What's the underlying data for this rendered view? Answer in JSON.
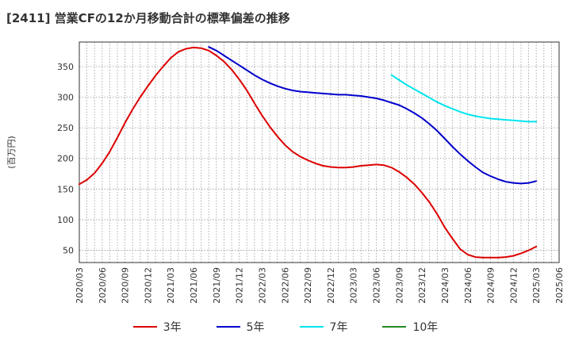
{
  "title": "[2411]  営業CFの12か月移動合計の標準偏差の推移",
  "chart_data": {
    "type": "line",
    "ylabel": "(百万円)",
    "ylim": [
      30,
      390
    ],
    "yticks": [
      50,
      100,
      150,
      200,
      250,
      300,
      350
    ],
    "xticks": [
      "2020/03",
      "2020/06",
      "2020/09",
      "2020/12",
      "2021/03",
      "2021/06",
      "2021/09",
      "2021/12",
      "2022/03",
      "2022/06",
      "2022/09",
      "2022/12",
      "2023/03",
      "2023/06",
      "2023/09",
      "2023/12",
      "2024/03",
      "2024/06",
      "2024/09",
      "2024/12",
      "2025/03",
      "2025/06"
    ],
    "grid": true,
    "legend_position": "bottom",
    "series": [
      {
        "name": "3年",
        "color": "#dd0000",
        "points": [
          [
            "2020/03",
            158
          ],
          [
            "2020/04",
            165
          ],
          [
            "2020/05",
            176
          ],
          [
            "2020/06",
            192
          ],
          [
            "2020/07",
            211
          ],
          [
            "2020/08",
            234
          ],
          [
            "2020/09",
            258
          ],
          [
            "2020/10",
            280
          ],
          [
            "2020/11",
            300
          ],
          [
            "2020/12",
            318
          ],
          [
            "2021/01",
            335
          ],
          [
            "2021/02",
            350
          ],
          [
            "2021/03",
            364
          ],
          [
            "2021/04",
            374
          ],
          [
            "2021/05",
            379
          ],
          [
            "2021/06",
            381
          ],
          [
            "2021/07",
            380
          ],
          [
            "2021/08",
            376
          ],
          [
            "2021/09",
            368
          ],
          [
            "2021/10",
            358
          ],
          [
            "2021/11",
            345
          ],
          [
            "2021/12",
            329
          ],
          [
            "2022/01",
            311
          ],
          [
            "2022/02",
            290
          ],
          [
            "2022/03",
            270
          ],
          [
            "2022/04",
            252
          ],
          [
            "2022/05",
            236
          ],
          [
            "2022/06",
            222
          ],
          [
            "2022/07",
            211
          ],
          [
            "2022/08",
            203
          ],
          [
            "2022/09",
            197
          ],
          [
            "2022/10",
            192
          ],
          [
            "2022/11",
            188
          ],
          [
            "2022/12",
            186
          ],
          [
            "2023/01",
            185
          ],
          [
            "2023/02",
            185
          ],
          [
            "2023/03",
            186
          ],
          [
            "2023/04",
            188
          ],
          [
            "2023/05",
            189
          ],
          [
            "2023/06",
            190
          ],
          [
            "2023/07",
            189
          ],
          [
            "2023/08",
            185
          ],
          [
            "2023/09",
            178
          ],
          [
            "2023/10",
            169
          ],
          [
            "2023/11",
            158
          ],
          [
            "2023/12",
            144
          ],
          [
            "2024/01",
            128
          ],
          [
            "2024/02",
            109
          ],
          [
            "2024/03",
            87
          ],
          [
            "2024/04",
            69
          ],
          [
            "2024/05",
            52
          ],
          [
            "2024/06",
            43
          ],
          [
            "2024/07",
            39
          ],
          [
            "2024/08",
            38
          ],
          [
            "2024/09",
            38
          ],
          [
            "2024/10",
            38
          ],
          [
            "2024/11",
            39
          ],
          [
            "2024/12",
            41
          ],
          [
            "2025/01",
            45
          ],
          [
            "2025/02",
            50
          ],
          [
            "2025/03",
            56
          ]
        ]
      },
      {
        "name": "5年",
        "color": "#0000cc",
        "points": [
          [
            "2021/08",
            382
          ],
          [
            "2021/09",
            376
          ],
          [
            "2021/10",
            368
          ],
          [
            "2021/11",
            360
          ],
          [
            "2021/12",
            352
          ],
          [
            "2022/01",
            344
          ],
          [
            "2022/02",
            336
          ],
          [
            "2022/03",
            329
          ],
          [
            "2022/04",
            323
          ],
          [
            "2022/05",
            318
          ],
          [
            "2022/06",
            314
          ],
          [
            "2022/07",
            311
          ],
          [
            "2022/08",
            309
          ],
          [
            "2022/09",
            308
          ],
          [
            "2022/10",
            307
          ],
          [
            "2022/11",
            306
          ],
          [
            "2022/12",
            305
          ],
          [
            "2023/01",
            304
          ],
          [
            "2023/02",
            304
          ],
          [
            "2023/03",
            303
          ],
          [
            "2023/04",
            302
          ],
          [
            "2023/05",
            300
          ],
          [
            "2023/06",
            298
          ],
          [
            "2023/07",
            295
          ],
          [
            "2023/08",
            291
          ],
          [
            "2023/09",
            287
          ],
          [
            "2023/10",
            281
          ],
          [
            "2023/11",
            274
          ],
          [
            "2023/12",
            266
          ],
          [
            "2024/01",
            256
          ],
          [
            "2024/02",
            245
          ],
          [
            "2024/03",
            232
          ],
          [
            "2024/04",
            219
          ],
          [
            "2024/05",
            207
          ],
          [
            "2024/06",
            196
          ],
          [
            "2024/07",
            186
          ],
          [
            "2024/08",
            177
          ],
          [
            "2024/09",
            171
          ],
          [
            "2024/10",
            166
          ],
          [
            "2024/11",
            162
          ],
          [
            "2024/12",
            160
          ],
          [
            "2025/01",
            159
          ],
          [
            "2025/02",
            160
          ],
          [
            "2025/03",
            163
          ]
        ]
      },
      {
        "name": "7年",
        "color": "#00e5ee",
        "points": [
          [
            "2023/08",
            336
          ],
          [
            "2023/09",
            328
          ],
          [
            "2023/10",
            320
          ],
          [
            "2023/11",
            313
          ],
          [
            "2023/12",
            306
          ],
          [
            "2024/01",
            299
          ],
          [
            "2024/02",
            292
          ],
          [
            "2024/03",
            286
          ],
          [
            "2024/04",
            281
          ],
          [
            "2024/05",
            276
          ],
          [
            "2024/06",
            272
          ],
          [
            "2024/07",
            269
          ],
          [
            "2024/08",
            267
          ],
          [
            "2024/09",
            265
          ],
          [
            "2024/10",
            264
          ],
          [
            "2024/11",
            263
          ],
          [
            "2024/12",
            262
          ],
          [
            "2025/01",
            261
          ],
          [
            "2025/02",
            260
          ],
          [
            "2025/03",
            260
          ]
        ]
      },
      {
        "name": "10年",
        "color": "#228b22",
        "points": []
      }
    ]
  }
}
